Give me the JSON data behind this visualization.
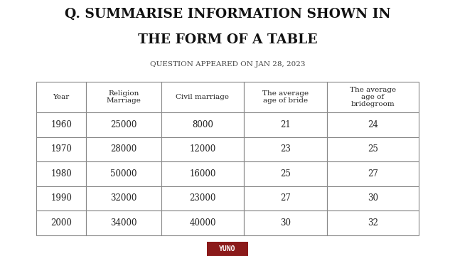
{
  "title_line1": "Q. SUMMARISE INFORMATION SHOWN IN",
  "title_line2": "THE FORM OF A TABLE",
  "subtitle": "QUESTION APPEARED ON JAN 28, 2023",
  "headers": [
    "Year",
    "Religion\nMarriage",
    "Civil marriage",
    "The average\nage of bride",
    "The average\nage of\nbridegroom"
  ],
  "rows": [
    [
      "1960",
      "25000",
      "8000",
      "21",
      "24"
    ],
    [
      "1970",
      "28000",
      "12000",
      "23",
      "25"
    ],
    [
      "1980",
      "50000",
      "16000",
      "25",
      "27"
    ],
    [
      "1990",
      "32000",
      "23000",
      "27",
      "30"
    ],
    [
      "2000",
      "34000",
      "40000",
      "30",
      "32"
    ]
  ],
  "bg_color": "#ffffff",
  "table_border_color": "#888888",
  "text_color": "#222222",
  "title_color": "#111111",
  "subtitle_color": "#444444",
  "logo_bg": "#8b1a1a",
  "logo_text": "YUNO",
  "logo_text_color": "#ffffff"
}
